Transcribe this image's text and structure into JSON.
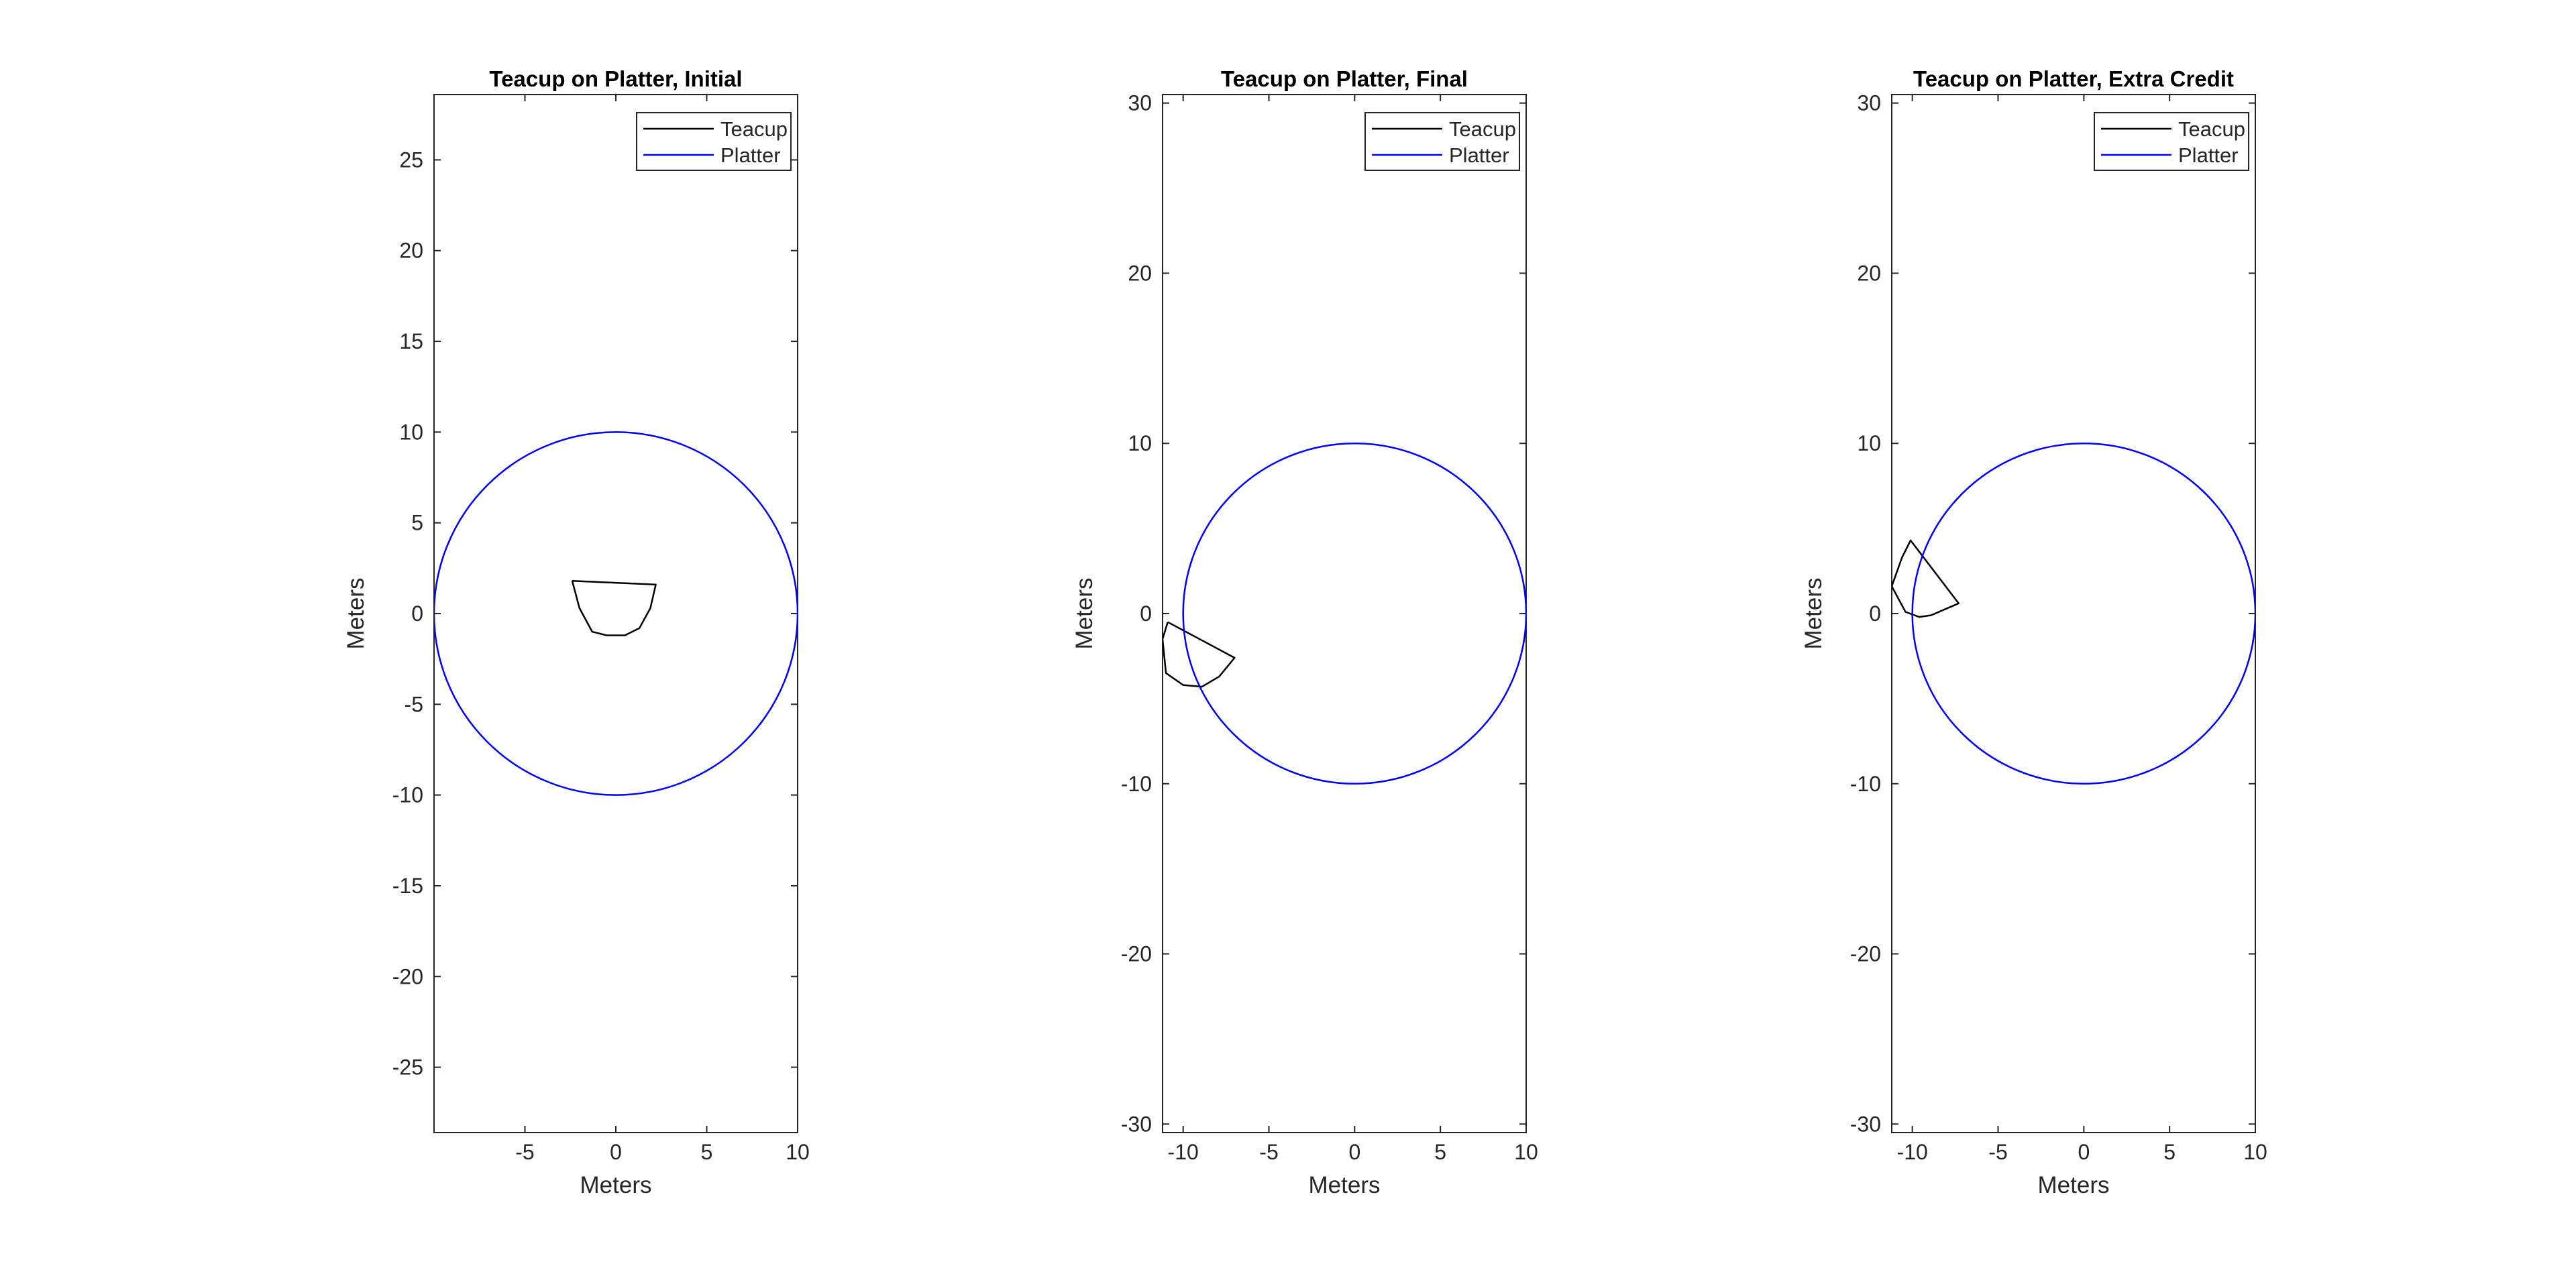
{
  "chart_data": [
    {
      "type": "line",
      "title": "Teacup on Platter, Initial",
      "xlabel": "Meters",
      "ylabel": "Meters",
      "xlim": [
        -10,
        10
      ],
      "ylim": [
        -28.6,
        28.6
      ],
      "xticks": [
        -5,
        0,
        5,
        10
      ],
      "xtick_labels": [
        "-5",
        "0",
        "5",
        "10"
      ],
      "yticks": [
        -25,
        -20,
        -15,
        -10,
        -5,
        0,
        5,
        10,
        15,
        20,
        25
      ],
      "ytick_labels": [
        "-25",
        "-20",
        "-15",
        "-10",
        "-5",
        "0",
        "5",
        "10",
        "15",
        "20",
        "25"
      ],
      "grid": false,
      "legend": {
        "location": "top-right",
        "entries": [
          "Teacup",
          "Platter"
        ]
      },
      "series": [
        {
          "name": "Teacup",
          "color": "#000000",
          "points": [
            [
              -2.4,
              1.8
            ],
            [
              -2.0,
              0.3
            ],
            [
              -1.3,
              -1.0
            ],
            [
              -0.5,
              -1.2
            ],
            [
              0.5,
              -1.2
            ],
            [
              1.3,
              -0.8
            ],
            [
              1.9,
              0.3
            ],
            [
              2.2,
              1.6
            ],
            [
              -2.4,
              1.8
            ]
          ]
        },
        {
          "name": "Platter",
          "color": "#0000ff",
          "shape": "circle",
          "center": [
            0,
            0
          ],
          "radius": 10
        }
      ]
    },
    {
      "type": "line",
      "title": "Teacup on Platter, Final",
      "xlabel": "Meters",
      "ylabel": "Meters",
      "xlim": [
        -11.2,
        10
      ],
      "ylim": [
        -30.5,
        30.5
      ],
      "xticks": [
        -10,
        -5,
        0,
        5,
        10
      ],
      "xtick_labels": [
        "-10",
        "-5",
        "0",
        "5",
        "10"
      ],
      "yticks": [
        -30,
        -20,
        -10,
        0,
        10,
        20,
        30
      ],
      "ytick_labels": [
        "-30",
        "-20",
        "-10",
        "0",
        "10",
        "20",
        "30"
      ],
      "grid": false,
      "legend": {
        "location": "top-right",
        "entries": [
          "Teacup",
          "Platter"
        ]
      },
      "series": [
        {
          "name": "Teacup",
          "color": "#000000",
          "points": [
            [
              -10.9,
              -0.5
            ],
            [
              -11.2,
              -1.5
            ],
            [
              -11.0,
              -3.5
            ],
            [
              -10.0,
              -4.2
            ],
            [
              -8.9,
              -4.3
            ],
            [
              -7.9,
              -3.7
            ],
            [
              -7.0,
              -2.6
            ],
            [
              -10.9,
              -0.5
            ]
          ]
        },
        {
          "name": "Platter",
          "color": "#0000ff",
          "shape": "circle",
          "center": [
            0,
            0
          ],
          "radius": 10
        }
      ]
    },
    {
      "type": "line",
      "title": "Teacup on Platter, Extra Credit",
      "xlabel": "Meters",
      "ylabel": "Meters",
      "xlim": [
        -11.2,
        10
      ],
      "ylim": [
        -30.5,
        30.5
      ],
      "xticks": [
        -10,
        -5,
        0,
        5,
        10
      ],
      "xtick_labels": [
        "-10",
        "-5",
        "0",
        "5",
        "10"
      ],
      "yticks": [
        -30,
        -20,
        -10,
        0,
        10,
        20,
        30
      ],
      "ytick_labels": [
        "-30",
        "-20",
        "-10",
        "0",
        "10",
        "20",
        "30"
      ],
      "grid": false,
      "legend": {
        "location": "top-right",
        "entries": [
          "Teacup",
          "Platter"
        ]
      },
      "series": [
        {
          "name": "Teacup",
          "color": "#000000",
          "points": [
            [
              -11.2,
              1.6
            ],
            [
              -10.6,
              3.3
            ],
            [
              -10.1,
              4.3
            ],
            [
              -7.3,
              0.6
            ],
            [
              -8.9,
              -0.1
            ],
            [
              -9.6,
              -0.2
            ],
            [
              -10.4,
              0.1
            ],
            [
              -11.2,
              1.6
            ]
          ]
        },
        {
          "name": "Platter",
          "color": "#0000ff",
          "shape": "circle",
          "center": [
            0,
            0
          ],
          "radius": 10
        }
      ]
    }
  ]
}
